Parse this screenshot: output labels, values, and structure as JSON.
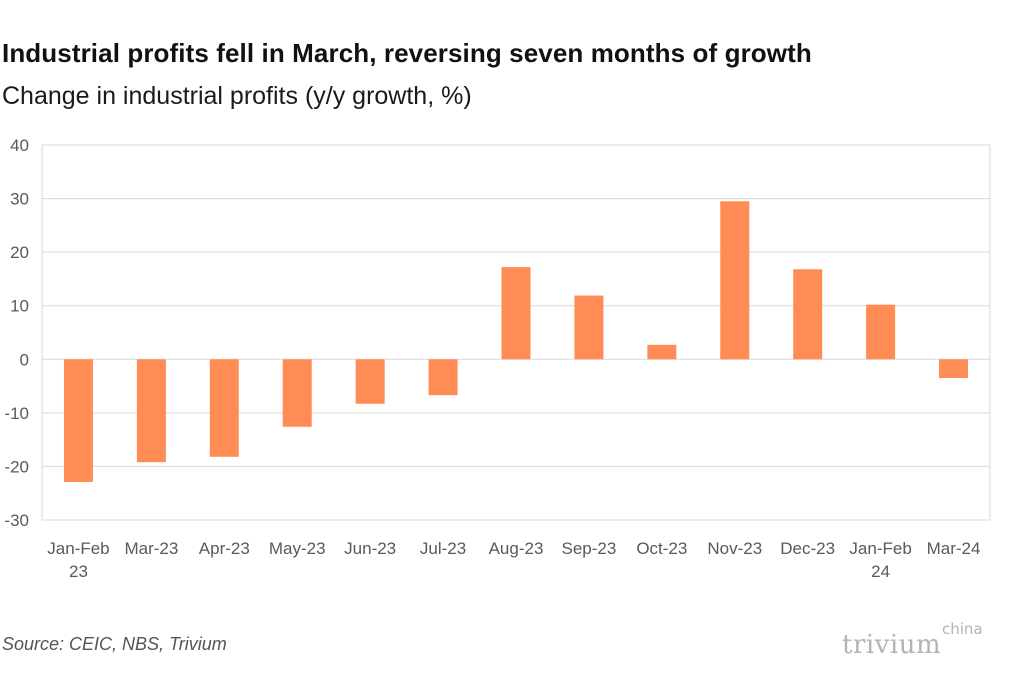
{
  "title": "Industrial profits fell in March, reversing seven months of growth",
  "subtitle": "Change in industrial profits (y/y growth, %)",
  "source": "Source: CEIC, NBS, Trivium",
  "logo": {
    "main": "trivium",
    "sup": "china"
  },
  "colors": {
    "bar": "#FF8C54",
    "grid": "#d9d9d9",
    "axis_text": "#595959"
  },
  "chart_data": {
    "type": "bar",
    "categories": [
      "Jan-Feb 23",
      "Mar-23",
      "Apr-23",
      "May-23",
      "Jun-23",
      "Jul-23",
      "Aug-23",
      "Sep-23",
      "Oct-23",
      "Nov-23",
      "Dec-23",
      "Jan-Feb 24",
      "Mar-24"
    ],
    "values": [
      -22.9,
      -19.2,
      -18.2,
      -12.6,
      -8.3,
      -6.7,
      17.2,
      11.9,
      2.7,
      29.5,
      16.8,
      10.2,
      -3.5
    ],
    "title": "Industrial profits fell in March, reversing seven months of growth",
    "subtitle": "Change in industrial profits (y/y growth, %)",
    "xlabel": "",
    "ylabel": "",
    "ylim": [
      -30,
      40
    ],
    "yticks": [
      40,
      30,
      20,
      10,
      0,
      -10,
      -20,
      -30
    ],
    "grid": true,
    "legend": "none"
  }
}
